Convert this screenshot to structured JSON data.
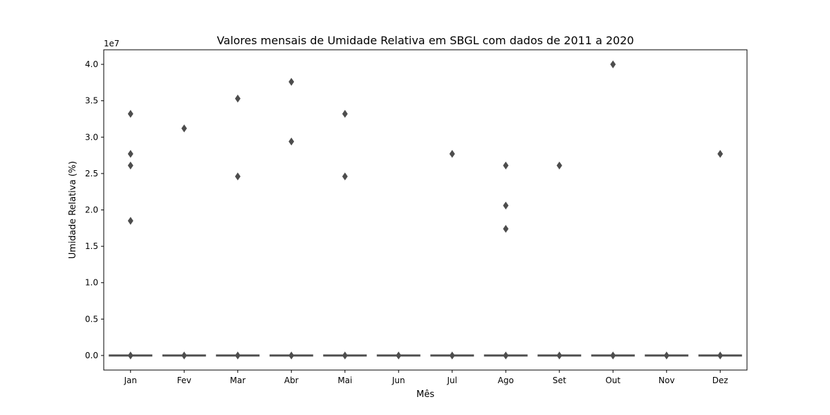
{
  "chart_data": {
    "type": "box",
    "title": "Valores mensais de Umidade Relativa em SBGL com dados de 2011 a 2020",
    "xlabel": "Mês",
    "ylabel": "Umidade Relativa (%)",
    "y_offset_label": "1e7",
    "categories": [
      "Jan",
      "Fev",
      "Mar",
      "Abr",
      "Mai",
      "Jun",
      "Jul",
      "Ago",
      "Set",
      "Out",
      "Nov",
      "Dez"
    ],
    "ylim": [
      -0.2,
      4.2
    ],
    "y_ticks": [
      0.0,
      0.5,
      1.0,
      1.5,
      2.0,
      2.5,
      3.0,
      3.5,
      4.0
    ],
    "y_tick_labels": [
      "0.0",
      "0.5",
      "1.0",
      "1.5",
      "2.0",
      "2.5",
      "3.0",
      "3.5",
      "4.0"
    ],
    "y_units_multiplier": 10000000,
    "box_color": "#4d4d4d",
    "grid": false,
    "boxes": [
      {
        "category": "Jan",
        "median": 0,
        "outliers": [
          3.32,
          2.77,
          2.61,
          1.85,
          0.0
        ]
      },
      {
        "category": "Fev",
        "median": 0,
        "outliers": [
          3.12,
          0.0
        ]
      },
      {
        "category": "Mar",
        "median": 0,
        "outliers": [
          3.53,
          2.46,
          0.0
        ]
      },
      {
        "category": "Abr",
        "median": 0,
        "outliers": [
          3.76,
          2.94,
          0.0
        ]
      },
      {
        "category": "Mai",
        "median": 0,
        "outliers": [
          3.32,
          2.46,
          0.0
        ]
      },
      {
        "category": "Jun",
        "median": 0,
        "outliers": [
          0.0
        ]
      },
      {
        "category": "Jul",
        "median": 0,
        "outliers": [
          2.77,
          0.0
        ]
      },
      {
        "category": "Ago",
        "median": 0,
        "outliers": [
          2.61,
          2.06,
          1.74,
          0.0
        ]
      },
      {
        "category": "Set",
        "median": 0,
        "outliers": [
          2.61,
          0.0
        ]
      },
      {
        "category": "Out",
        "median": 0,
        "outliers": [
          4.0,
          0.0
        ]
      },
      {
        "category": "Nov",
        "median": 0,
        "outliers": [
          0.0
        ]
      },
      {
        "category": "Dez",
        "median": 0,
        "outliers": [
          2.77,
          0.0
        ]
      }
    ]
  }
}
